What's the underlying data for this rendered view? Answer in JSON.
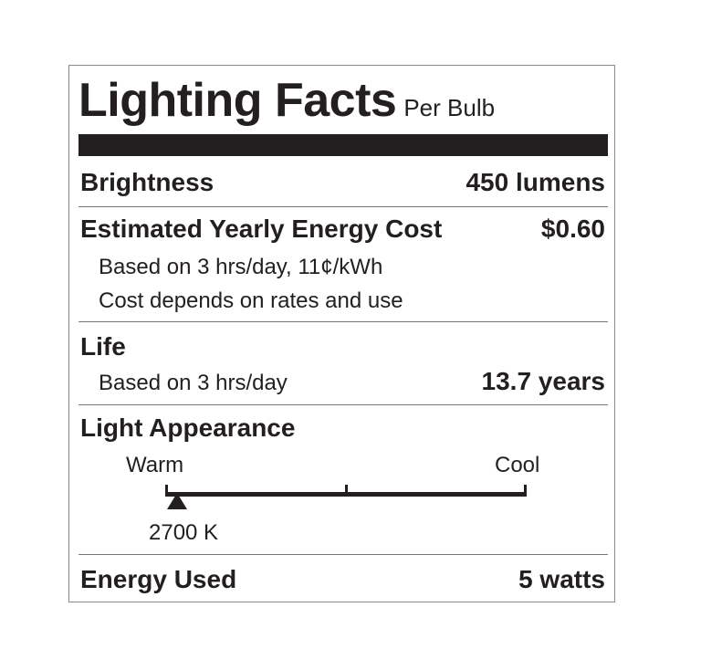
{
  "title": "Lighting Facts",
  "subtitle": "Per Bulb",
  "brightness": {
    "label": "Brightness",
    "value": "450 lumens"
  },
  "energy_cost": {
    "label": "Estimated Yearly Energy Cost",
    "value": "$0.60",
    "note1": "Based on 3 hrs/day, 11¢/kWh",
    "note2": "Cost depends on rates and use"
  },
  "life": {
    "label": "Life",
    "note": "Based on 3 hrs/day",
    "value": "13.7 years"
  },
  "light_appearance": {
    "label": "Light Appearance",
    "warm": "Warm",
    "cool": "Cool",
    "value": "2700 K",
    "position_fraction": 0.03
  },
  "energy_used": {
    "label": "Energy Used",
    "value": "5 watts"
  }
}
